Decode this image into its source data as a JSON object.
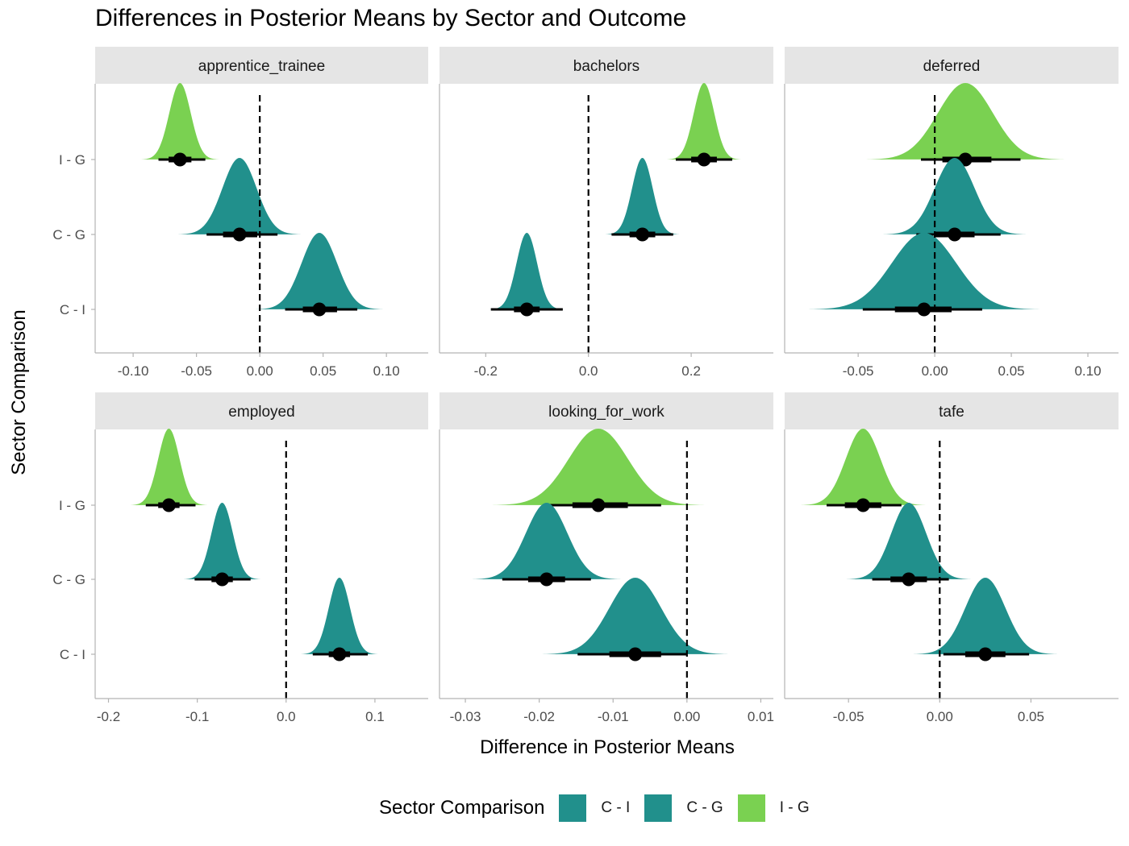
{
  "title": "Differences in Posterior Means by Sector and Outcome",
  "xlabel": "Difference in Posterior Means",
  "ylabel": "Sector Comparison",
  "legend": {
    "title": "Sector Comparison",
    "items": [
      {
        "label": "C - I",
        "color": "#21908C"
      },
      {
        "label": "C - G",
        "color": "#21908C"
      },
      {
        "label": "I - G",
        "color": "#7AD151"
      }
    ]
  },
  "chart_data": {
    "type": "halfeye",
    "categories": [
      "I - G",
      "C - G",
      "C - I"
    ],
    "colors": {
      "C - I": "#21908C",
      "C - G": "#21908C",
      "I - G": "#7AD151"
    },
    "grid": false,
    "legend_position": "bottom",
    "panels": [
      {
        "name": "apprentice_trainee",
        "xlim": [
          -0.13,
          0.133
        ],
        "ticks": [
          -0.1,
          -0.05,
          0.0,
          0.05,
          0.1
        ],
        "tick_labels": [
          "-0.10",
          "-0.05",
          "0.00",
          "0.05",
          "0.10"
        ],
        "reference_line": 0,
        "series": [
          {
            "name": "I - G",
            "median": -0.063,
            "sd": 0.0085,
            "interval_66": [
              -0.072,
              -0.054
            ],
            "interval_95": [
              -0.08,
              -0.043
            ]
          },
          {
            "name": "C - G",
            "median": -0.016,
            "sd": 0.0135,
            "interval_66": [
              -0.029,
              -0.002
            ],
            "interval_95": [
              -0.042,
              0.014
            ]
          },
          {
            "name": "C - I",
            "median": 0.047,
            "sd": 0.014,
            "interval_66": [
              0.034,
              0.061
            ],
            "interval_95": [
              0.02,
              0.077
            ]
          }
        ]
      },
      {
        "name": "bachelors",
        "xlim": [
          -0.29,
          0.36
        ],
        "ticks": [
          -0.2,
          0.0,
          0.2
        ],
        "tick_labels": [
          "-0.2",
          "0.0",
          "0.2"
        ],
        "reference_line": 0,
        "series": [
          {
            "name": "I - G",
            "median": 0.225,
            "sd": 0.02,
            "interval_66": [
              0.2,
              0.25
            ],
            "interval_95": [
              0.17,
              0.28
            ]
          },
          {
            "name": "C - G",
            "median": 0.105,
            "sd": 0.02,
            "interval_66": [
              0.08,
              0.13
            ],
            "interval_95": [
              0.045,
              0.165
            ]
          },
          {
            "name": "C - I",
            "median": -0.12,
            "sd": 0.02,
            "interval_66": [
              -0.145,
              -0.095
            ],
            "interval_95": [
              -0.19,
              -0.05
            ]
          }
        ]
      },
      {
        "name": "deferred",
        "xlim": [
          -0.098,
          0.12
        ],
        "ticks": [
          -0.05,
          0.0,
          0.05,
          0.1
        ],
        "tick_labels": [
          "-0.05",
          "0.00",
          "0.05",
          "0.10"
        ],
        "reference_line": 0,
        "series": [
          {
            "name": "I - G",
            "median": 0.02,
            "sd": 0.018,
            "interval_66": [
              0.005,
              0.037
            ],
            "interval_95": [
              -0.009,
              0.056
            ]
          },
          {
            "name": "C - G",
            "median": 0.013,
            "sd": 0.013,
            "interval_66": [
              0.0,
              0.026
            ],
            "interval_95": [
              -0.012,
              0.043
            ]
          },
          {
            "name": "C - I",
            "median": -0.007,
            "sd": 0.021,
            "interval_66": [
              -0.026,
              0.011
            ],
            "interval_95": [
              -0.047,
              0.031
            ]
          }
        ]
      },
      {
        "name": "employed",
        "xlim": [
          -0.215,
          0.16
        ],
        "ticks": [
          -0.2,
          -0.1,
          0.0,
          0.1
        ],
        "tick_labels": [
          "-0.2",
          "-0.1",
          "0.0",
          "0.1"
        ],
        "reference_line": 0,
        "series": [
          {
            "name": "I - G",
            "median": -0.132,
            "sd": 0.012,
            "interval_66": [
              -0.144,
              -0.12
            ],
            "interval_95": [
              -0.158,
              -0.102
            ]
          },
          {
            "name": "C - G",
            "median": -0.072,
            "sd": 0.012,
            "interval_66": [
              -0.084,
              -0.06
            ],
            "interval_95": [
              -0.103,
              -0.04
            ]
          },
          {
            "name": "C - I",
            "median": 0.06,
            "sd": 0.012,
            "interval_66": [
              0.048,
              0.072
            ],
            "interval_95": [
              0.03,
              0.092
            ]
          }
        ]
      },
      {
        "name": "looking_for_work",
        "xlim": [
          -0.0335,
          0.0117
        ],
        "ticks": [
          -0.03,
          -0.02,
          -0.01,
          0.0,
          0.01
        ],
        "tick_labels": [
          "-0.03",
          "-0.02",
          "-0.01",
          "0.00",
          "0.01"
        ],
        "reference_line": 0,
        "series": [
          {
            "name": "I - G",
            "median": -0.012,
            "sd": 0.004,
            "interval_66": [
              -0.0155,
              -0.008
            ],
            "interval_95": [
              -0.0195,
              -0.0035
            ]
          },
          {
            "name": "C - G",
            "median": -0.019,
            "sd": 0.0028,
            "interval_66": [
              -0.0215,
              -0.0165
            ],
            "interval_95": [
              -0.025,
              -0.013
            ]
          },
          {
            "name": "C - I",
            "median": -0.007,
            "sd": 0.0035,
            "interval_66": [
              -0.0105,
              -0.0035
            ],
            "interval_95": [
              -0.0148,
              0.0
            ]
          }
        ]
      },
      {
        "name": "tafe",
        "xlim": [
          -0.085,
          0.098
        ],
        "ticks": [
          -0.05,
          0.0,
          0.05
        ],
        "tick_labels": [
          "-0.05",
          "0.00",
          "0.05"
        ],
        "reference_line": 0,
        "series": [
          {
            "name": "I - G",
            "median": -0.042,
            "sd": 0.0095,
            "interval_66": [
              -0.052,
              -0.032
            ],
            "interval_95": [
              -0.062,
              -0.021
            ]
          },
          {
            "name": "C - G",
            "median": -0.017,
            "sd": 0.0095,
            "interval_66": [
              -0.027,
              -0.007
            ],
            "interval_95": [
              -0.037,
              0.005
            ]
          },
          {
            "name": "C - I",
            "median": 0.025,
            "sd": 0.011,
            "interval_66": [
              0.014,
              0.036
            ],
            "interval_95": [
              0.002,
              0.049
            ]
          }
        ]
      }
    ]
  }
}
